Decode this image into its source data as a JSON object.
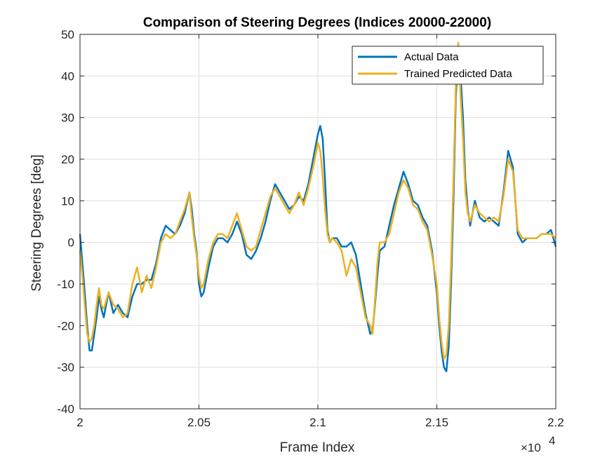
{
  "chart_data": {
    "type": "line",
    "title": "Comparison of Steering Degrees (Indices 20000-22000)",
    "xlabel": "Frame Index",
    "ylabel": "Steering Degrees [deg]",
    "xlim": [
      20000,
      22000
    ],
    "ylim": [
      -40,
      50
    ],
    "x_tick_labels": [
      "2",
      "2.05",
      "2.1",
      "2.15",
      "2.2"
    ],
    "x_ticks": [
      20000,
      20500,
      21000,
      21500,
      22000
    ],
    "x_exponent_label": "×10",
    "x_exponent_power": "4",
    "y_ticks": [
      -40,
      -30,
      -20,
      -10,
      0,
      10,
      20,
      30,
      40,
      50
    ],
    "y_tick_labels": [
      "-40",
      "-30",
      "-20",
      "-10",
      "0",
      "10",
      "20",
      "30",
      "40",
      "50"
    ],
    "grid": true,
    "legend_position": "top-right",
    "series": [
      {
        "name": "Actual Data",
        "color": "#0072BD",
        "x": [
          20000,
          20010,
          20020,
          20030,
          20040,
          20050,
          20060,
          20070,
          20080,
          20090,
          20100,
          20120,
          20140,
          20160,
          20180,
          20200,
          20220,
          20240,
          20260,
          20280,
          20300,
          20320,
          20340,
          20360,
          20380,
          20400,
          20420,
          20440,
          20460,
          20470,
          20480,
          20490,
          20500,
          20510,
          20520,
          20540,
          20560,
          20580,
          20600,
          20620,
          20640,
          20660,
          20680,
          20700,
          20720,
          20740,
          20760,
          20780,
          20800,
          20820,
          20840,
          20860,
          20880,
          20900,
          20920,
          20940,
          20960,
          20980,
          21000,
          21010,
          21020,
          21030,
          21040,
          21050,
          21060,
          21080,
          21100,
          21120,
          21140,
          21160,
          21180,
          21200,
          21220,
          21230,
          21240,
          21250,
          21260,
          21280,
          21300,
          21320,
          21340,
          21360,
          21380,
          21400,
          21420,
          21440,
          21460,
          21480,
          21500,
          21510,
          21520,
          21530,
          21540,
          21550,
          21560,
          21570,
          21580,
          21590,
          21600,
          21610,
          21620,
          21630,
          21640,
          21660,
          21680,
          21700,
          21720,
          21740,
          21760,
          21780,
          21800,
          21820,
          21840,
          21860,
          21880,
          21900,
          21920,
          21940,
          21960,
          21980,
          22000
        ],
        "values": [
          2,
          -5,
          -12,
          -20,
          -26,
          -26,
          -22,
          -18,
          -13,
          -16,
          -18,
          -12,
          -17,
          -15,
          -17,
          -18,
          -13,
          -10,
          -10,
          -9,
          -9,
          -5,
          1,
          4,
          3,
          2,
          4,
          7,
          12,
          8,
          2,
          -2,
          -10,
          -13,
          -12,
          -6,
          -1,
          1,
          1,
          0,
          2,
          5,
          2,
          -3,
          -4,
          -2,
          1,
          5,
          10,
          14,
          12,
          10,
          8,
          9,
          11,
          10,
          14,
          20,
          26,
          28,
          25,
          15,
          3,
          0,
          1,
          1,
          -1,
          -1,
          0,
          -3,
          -10,
          -17,
          -22,
          -21,
          -15,
          -8,
          -2,
          -1,
          4,
          9,
          13,
          17,
          14,
          10,
          9,
          6,
          4,
          -2,
          -12,
          -20,
          -26,
          -30,
          -31,
          -25,
          -10,
          10,
          35,
          45,
          40,
          30,
          15,
          8,
          4,
          10,
          6,
          5,
          6,
          5,
          4,
          12,
          22,
          18,
          2,
          0,
          1,
          1,
          1,
          2,
          2,
          3,
          -1
        ]
      },
      {
        "name": "Trained Predicted Data",
        "color": "#EDB120",
        "x": [
          20000,
          20010,
          20020,
          20030,
          20040,
          20050,
          20060,
          20070,
          20080,
          20090,
          20100,
          20120,
          20140,
          20160,
          20180,
          20200,
          20220,
          20240,
          20260,
          20280,
          20300,
          20320,
          20340,
          20360,
          20380,
          20400,
          20420,
          20440,
          20460,
          20470,
          20480,
          20490,
          20500,
          20510,
          20520,
          20540,
          20560,
          20580,
          20600,
          20620,
          20640,
          20660,
          20680,
          20700,
          20720,
          20740,
          20760,
          20780,
          20800,
          20820,
          20840,
          20860,
          20880,
          20900,
          20920,
          20940,
          20960,
          20980,
          21000,
          21010,
          21020,
          21030,
          21040,
          21050,
          21060,
          21080,
          21100,
          21120,
          21140,
          21160,
          21180,
          21200,
          21220,
          21230,
          21240,
          21250,
          21260,
          21280,
          21300,
          21320,
          21340,
          21360,
          21380,
          21400,
          21420,
          21440,
          21460,
          21480,
          21500,
          21510,
          21520,
          21530,
          21540,
          21550,
          21560,
          21570,
          21580,
          21590,
          21600,
          21610,
          21620,
          21630,
          21640,
          21660,
          21680,
          21700,
          21720,
          21740,
          21760,
          21780,
          21800,
          21820,
          21840,
          21860,
          21880,
          21900,
          21920,
          21940,
          21960,
          21980,
          22000
        ],
        "values": [
          -2,
          -8,
          -15,
          -22,
          -24,
          -23,
          -20,
          -15,
          -11,
          -15,
          -16,
          -12,
          -15,
          -16,
          -18,
          -17,
          -10,
          -6,
          -12,
          -8,
          -11,
          -6,
          0,
          2,
          1,
          2,
          5,
          8,
          12,
          6,
          1,
          -3,
          -8,
          -11,
          -10,
          -4,
          0,
          2,
          2,
          1,
          4,
          7,
          3,
          -1,
          -2,
          -1,
          3,
          7,
          11,
          13,
          11,
          9,
          7,
          9,
          12,
          9,
          13,
          18,
          24,
          22,
          16,
          8,
          2,
          0,
          1,
          0,
          -2,
          -8,
          -4,
          -6,
          -12,
          -18,
          -20,
          -22,
          -14,
          -5,
          0,
          0,
          2,
          7,
          12,
          15,
          13,
          9,
          8,
          5,
          3,
          -3,
          -10,
          -18,
          -24,
          -28,
          -27,
          -20,
          -5,
          15,
          38,
          48,
          35,
          25,
          12,
          7,
          5,
          9,
          7,
          6,
          5,
          6,
          5,
          11,
          20,
          17,
          3,
          1,
          1,
          1,
          1,
          2,
          2,
          2,
          1
        ]
      }
    ]
  }
}
